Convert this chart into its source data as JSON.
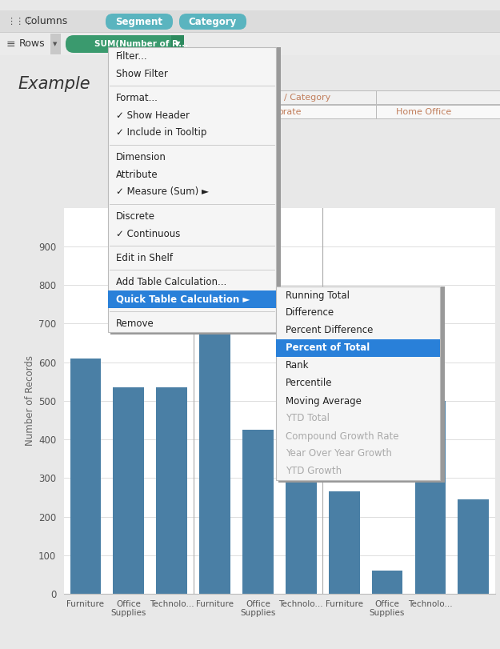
{
  "figsize": [
    6.25,
    8.11
  ],
  "dpi": 100,
  "bg_color": "#e8e8e8",
  "chart_bg": "#ffffff",
  "bar_color": "#4a7fa5",
  "bars": [
    610,
    535,
    535,
    720,
    425,
    535,
    265,
    60,
    500,
    245
  ],
  "bar_labels": [
    "Furniture",
    "Office\nSupplies",
    "Technolo...",
    "Furniture",
    "Office\nSupplies",
    "Technolo...",
    "Furniture",
    "Office\nSupplies",
    "Technolo...",
    ""
  ],
  "yticks": [
    0,
    100,
    200,
    300,
    400,
    500,
    600,
    700,
    800,
    900
  ],
  "ylabel": "Number of Records",
  "columns_color": "#5ab4bf",
  "rows_pill_color": "#3a9a6e",
  "segment_header_color": "#c17d5a",
  "menu1_items": [
    "Filter...",
    "Show Filter",
    null,
    "Format...",
    "✓ Show Header",
    "✓ Include in Tooltip",
    null,
    "Dimension",
    "Attribute",
    "✓ Measure (Sum) ►",
    null,
    "Discrete",
    "✓ Continuous",
    null,
    "Edit in Shelf",
    null,
    "Add Table Calculation...",
    "Quick Table Calculation ►",
    null,
    "Remove"
  ],
  "menu2_items": [
    "Running Total",
    "Difference",
    "Percent Difference",
    "Percent of Total",
    "Rank",
    "Percentile",
    "Moving Average",
    "YTD Total",
    "Compound Growth Rate",
    "Year Over Year Growth",
    "YTD Growth"
  ],
  "menu2_highlighted": 3,
  "menu2_grayed": [
    7,
    8,
    9,
    10
  ],
  "example_text": "Example"
}
